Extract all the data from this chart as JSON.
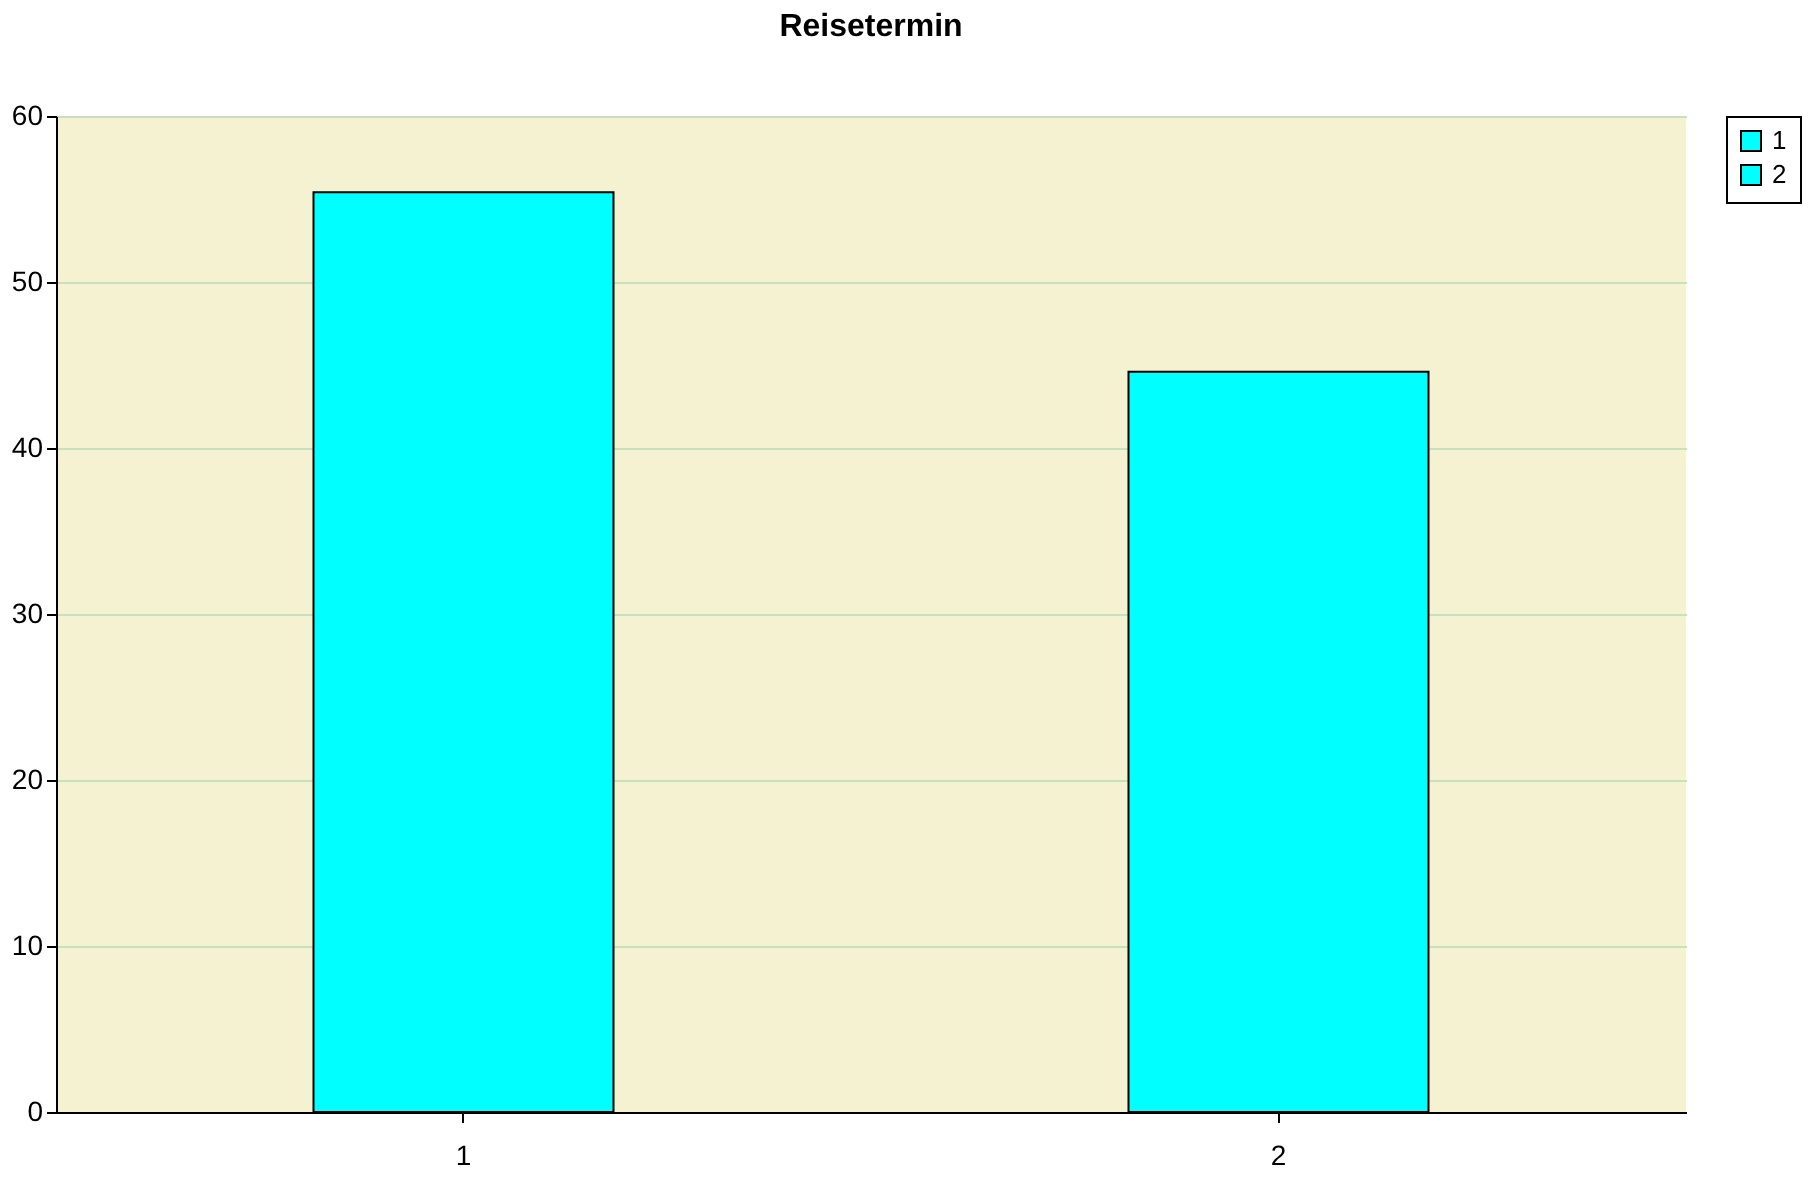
{
  "chart_data": {
    "type": "bar",
    "title": "Reisetermin",
    "categories": [
      "1",
      "2"
    ],
    "series": [
      {
        "name": "1",
        "color": "#00ffff",
        "values": [
          55.4,
          null
        ]
      },
      {
        "name": "2",
        "color": "#00ffff",
        "values": [
          null,
          44.6
        ]
      }
    ],
    "ylim": [
      0,
      60
    ],
    "yticks": [
      0,
      10,
      20,
      30,
      40,
      50,
      60
    ],
    "grid": "y",
    "legend": "right"
  }
}
